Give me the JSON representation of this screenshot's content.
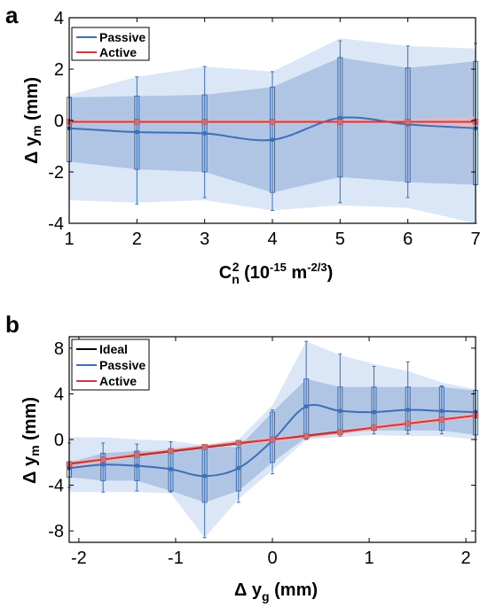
{
  "chart_data": [
    {
      "panel": "a",
      "type": "line",
      "xlabel": "C_n^2 (10^-15 m^-2/3)",
      "ylabel": "Δ y_m (mm)",
      "xlim": [
        1,
        7
      ],
      "ylim": [
        -4,
        4
      ],
      "xticks": [
        1,
        2,
        3,
        4,
        5,
        6,
        7
      ],
      "yticks": [
        -4,
        -2,
        0,
        2,
        4
      ],
      "grid": false,
      "legend_position": "top-left",
      "x": [
        1,
        2,
        3,
        4,
        5,
        6,
        7
      ],
      "series": [
        {
          "name": "Passive",
          "color": "#3f6fb5",
          "values": [
            -0.3,
            -0.45,
            -0.5,
            -0.75,
            0.1,
            -0.15,
            -0.3
          ],
          "box_q1": [
            -1.6,
            -1.9,
            -2.0,
            -2.8,
            -2.2,
            -2.4,
            -2.5
          ],
          "box_q3": [
            0.9,
            0.95,
            1.0,
            1.3,
            2.45,
            2.05,
            2.3
          ],
          "whisker_low": [
            -1.6,
            -3.25,
            -3.0,
            -3.5,
            -3.2,
            -3.0,
            -4.0
          ],
          "whisker_high": [
            0.9,
            1.7,
            2.1,
            1.9,
            3.1,
            2.9,
            3.0
          ],
          "band_outer_low": [
            -3.1,
            -3.2,
            -3.1,
            -3.5,
            -3.3,
            -3.4,
            -4.0
          ],
          "band_outer_high": [
            1.0,
            1.7,
            2.1,
            1.9,
            3.2,
            2.9,
            2.8
          ]
        },
        {
          "name": "Active",
          "color": "#d03a3f",
          "values": [
            -0.05,
            -0.05,
            -0.05,
            -0.05,
            -0.05,
            -0.05,
            -0.05
          ],
          "spread": [
            0.08,
            0.08,
            0.08,
            0.08,
            0.08,
            0.1,
            0.2
          ]
        }
      ]
    },
    {
      "panel": "b",
      "type": "line",
      "xlabel": "Δ y_g (mm)",
      "ylabel": "Δ y_m (mm)",
      "xlim": [
        -2.1,
        2.1
      ],
      "ylim": [
        -9,
        9
      ],
      "xticks": [
        -2,
        -1,
        0,
        1,
        2
      ],
      "yticks": [
        -8,
        -4,
        0,
        4,
        8
      ],
      "grid": false,
      "legend_position": "top-left",
      "x": [
        -2.1,
        -1.75,
        -1.4,
        -1.05,
        -0.7,
        -0.35,
        0,
        0.35,
        0.7,
        1.05,
        1.4,
        1.75,
        2.1
      ],
      "series": [
        {
          "name": "Ideal",
          "color": "#000000",
          "values": [
            -2.1,
            -1.75,
            -1.4,
            -1.05,
            -0.7,
            -0.35,
            0,
            0.35,
            0.7,
            1.05,
            1.4,
            1.75,
            2.1
          ]
        },
        {
          "name": "Passive",
          "color": "#3f6fb5",
          "values": [
            -2.5,
            -2.2,
            -2.3,
            -2.6,
            -3.2,
            -2.5,
            -0.1,
            2.9,
            2.5,
            2.4,
            2.6,
            2.5,
            2.4
          ],
          "box_q1": [
            -3.3,
            -3.6,
            -3.6,
            -4.5,
            -5.5,
            -4.5,
            -2.0,
            0.2,
            0.6,
            0.8,
            0.8,
            0.8,
            0.4
          ],
          "box_q3": [
            -2.0,
            -1.2,
            -1.0,
            -1.0,
            -0.5,
            -0.7,
            2.4,
            5.3,
            4.6,
            4.6,
            4.6,
            4.6,
            4.3
          ],
          "whisker_low": [
            -4.2,
            -4.6,
            -4.5,
            -4.6,
            -8.6,
            -5.5,
            -3.0,
            0.0,
            0.3,
            0.5,
            0.5,
            0.5,
            0.0
          ],
          "whisker_high": [
            -0.3,
            -0.3,
            -0.4,
            -0.2,
            -0.6,
            -0.2,
            2.6,
            8.6,
            7.5,
            6.4,
            6.8,
            4.7,
            4.3
          ],
          "band_outer_low": [
            -4.6,
            -4.6,
            -4.6,
            -4.7,
            -8.6,
            -5.2,
            -2.7,
            0.0,
            0.2,
            0.4,
            0.3,
            0.3,
            0.0
          ],
          "band_outer_high": [
            0.2,
            0.2,
            0.0,
            -0.1,
            -0.5,
            0.0,
            3.0,
            8.6,
            7.4,
            6.6,
            6.0,
            5.0,
            4.4
          ]
        },
        {
          "name": "Active",
          "color": "#d03a3f",
          "values": [
            -2.15,
            -1.75,
            -1.35,
            -1.0,
            -0.65,
            -0.3,
            0.0,
            0.3,
            0.65,
            1.05,
            1.4,
            1.75,
            2.1
          ],
          "spread": [
            0.25,
            0.25,
            0.2,
            0.2,
            0.2,
            0.2,
            0.2,
            0.2,
            0.2,
            0.2,
            0.2,
            0.2,
            0.25
          ]
        }
      ]
    }
  ],
  "panels": {
    "a": {
      "letter": "a",
      "ylabel_main": "Δ y",
      "ylabel_sub": "m",
      "ylabel_unit": " (mm)",
      "xlabel_main": "C",
      "xlabel_sub": "n",
      "xlabel_sup": "2",
      "xlabel_rest": " (10",
      "xlabel_exp1": "-15",
      "xlabel_mid": " m",
      "xlabel_exp2": "-2/3",
      "xlabel_end": ")",
      "legend": [
        "Passive",
        "Active"
      ]
    },
    "b": {
      "letter": "b",
      "ylabel_main": "Δ y",
      "ylabel_sub": "m",
      "ylabel_unit": " (mm)",
      "xlabel_main": "Δ y",
      "xlabel_sub": "g",
      "xlabel_unit": " (mm)",
      "legend": [
        "Ideal",
        "Passive",
        "Active"
      ]
    }
  }
}
